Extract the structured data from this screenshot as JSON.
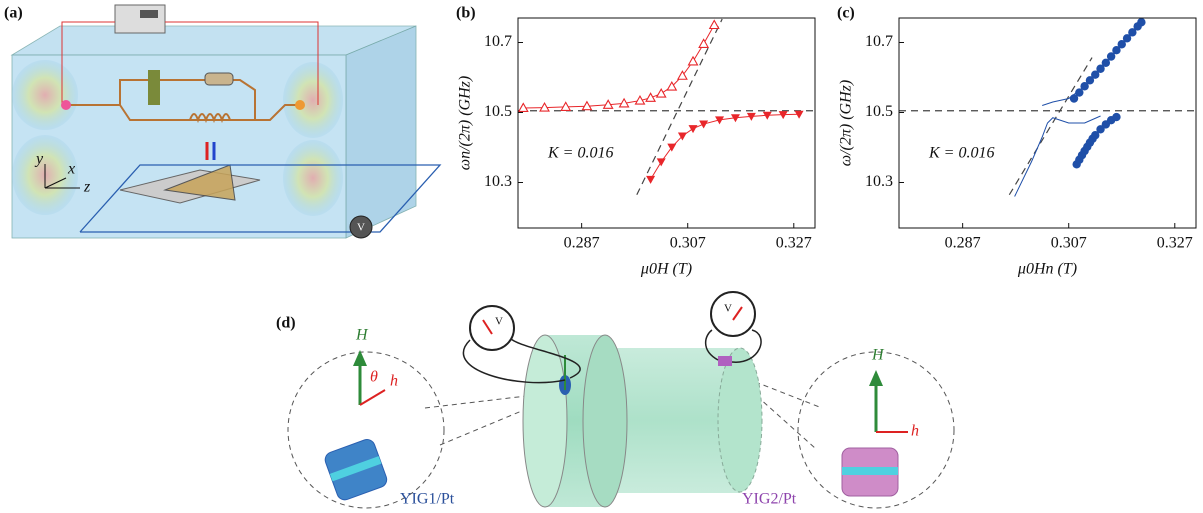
{
  "panels": {
    "a": {
      "label": "(a)",
      "axes": [
        "y",
        "x",
        "z"
      ],
      "meter": "V"
    },
    "d": {
      "label": "(d)",
      "meters": [
        "V",
        "V"
      ],
      "left": {
        "H": "H",
        "theta": "θ",
        "h": "h",
        "sample": "YIG1/Pt"
      },
      "right": {
        "H": "H",
        "h": "h",
        "sample": "YIG2/Pt"
      }
    }
  },
  "chart_data": [
    {
      "type": "scatter",
      "panel_label": "(b)",
      "xlabel": "μ0H (T)",
      "ylabel": "ωn/(2π) (GHz)",
      "annotation": "K = 0.016",
      "xlim": [
        0.275,
        0.331
      ],
      "ylim": [
        10.17,
        10.77
      ],
      "xticks": [
        0.287,
        0.307,
        0.327
      ],
      "yticks": [
        10.3,
        10.5,
        10.7
      ],
      "hline": 10.505,
      "dashed_line": {
        "x": [
          0.2974,
          0.3135
        ],
        "y": [
          10.265,
          10.767
        ]
      },
      "series": [
        {
          "color": "#e8262a",
          "marker": "triangle-open",
          "line": true,
          "x": [
            0.276,
            0.28,
            0.284,
            0.288,
            0.292,
            0.295,
            0.298,
            0.3,
            0.302,
            0.304,
            0.306,
            0.308,
            0.31,
            0.312
          ],
          "values": [
            10.513,
            10.514,
            10.516,
            10.518,
            10.522,
            10.526,
            10.534,
            10.542,
            10.554,
            10.574,
            10.605,
            10.646,
            10.696,
            10.75
          ]
        },
        {
          "color": "#e8262a",
          "marker": "triangle-down",
          "line": true,
          "x": [
            0.3,
            0.302,
            0.304,
            0.306,
            0.308,
            0.31,
            0.313,
            0.316,
            0.319,
            0.322,
            0.325,
            0.328
          ],
          "values": [
            10.309,
            10.359,
            10.401,
            10.433,
            10.454,
            10.467,
            10.479,
            10.485,
            10.489,
            10.492,
            10.494,
            10.495
          ]
        }
      ]
    },
    {
      "type": "scatter",
      "panel_label": "(c)",
      "xlabel": "μ0Hn (T)",
      "ylabel": "ω/(2π) (GHz)",
      "annotation": "K = 0.016",
      "xlim": [
        0.275,
        0.331
      ],
      "ylim": [
        10.17,
        10.77
      ],
      "xticks": [
        0.287,
        0.307,
        0.327
      ],
      "yticks": [
        10.3,
        10.5,
        10.7
      ],
      "hline": 10.505,
      "dashed_line": {
        "x": [
          0.2958,
          0.3114
        ],
        "y": [
          10.265,
          10.657
        ]
      },
      "fit": [
        {
          "x": [
            0.302,
            0.304,
            0.307,
            0.31,
            0.314,
            0.318,
            0.3205
          ],
          "y": [
            10.52,
            10.53,
            10.54,
            10.575,
            10.64,
            10.71,
            10.75
          ]
        },
        {
          "x": [
            0.2968,
            0.3,
            0.302,
            0.303,
            0.304,
            0.307,
            0.31,
            0.313
          ],
          "y": [
            10.26,
            10.36,
            10.43,
            10.47,
            10.485,
            10.47,
            10.47,
            10.49
          ]
        }
      ],
      "series": [
        {
          "color": "#1f4fa8",
          "marker": "circle",
          "line": false,
          "x": [
            0.308,
            0.309,
            0.31,
            0.311,
            0.312,
            0.313,
            0.314,
            0.315,
            0.316,
            0.317,
            0.318,
            0.319,
            0.32,
            0.3207
          ],
          "values": [
            10.54,
            10.557,
            10.575,
            10.592,
            10.608,
            10.625,
            10.642,
            10.66,
            10.678,
            10.695,
            10.712,
            10.729,
            10.746,
            10.758
          ]
        },
        {
          "color": "#1f4fa8",
          "marker": "circle",
          "line": false,
          "x": [
            0.3085,
            0.309,
            0.3095,
            0.31,
            0.3105,
            0.311,
            0.3115,
            0.312,
            0.313,
            0.314,
            0.315,
            0.316
          ],
          "values": [
            10.352,
            10.365,
            10.378,
            10.39,
            10.402,
            10.414,
            10.425,
            10.435,
            10.452,
            10.466,
            10.478,
            10.487
          ]
        }
      ]
    }
  ]
}
